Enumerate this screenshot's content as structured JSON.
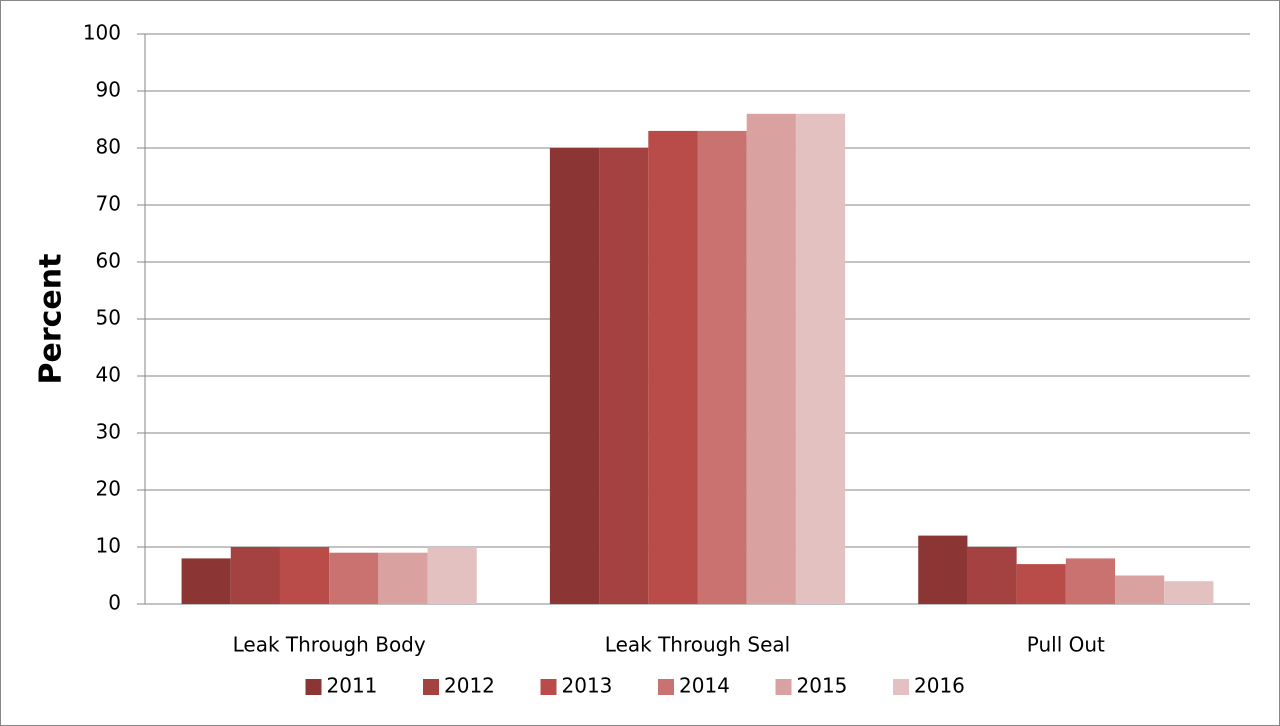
{
  "chart_data": {
    "type": "bar",
    "y_label": "Percent",
    "categories": [
      "Leak Through Body",
      "Leak Through Seal",
      "Pull Out"
    ],
    "series": [
      {
        "name": "2011",
        "color": "#8b3535",
        "values": [
          8,
          80,
          12
        ]
      },
      {
        "name": "2012",
        "color": "#a34240",
        "values": [
          10,
          80,
          10
        ]
      },
      {
        "name": "2013",
        "color": "#b94c48",
        "values": [
          10,
          83,
          7
        ]
      },
      {
        "name": "2014",
        "color": "#c97270",
        "values": [
          9,
          83,
          8
        ]
      },
      {
        "name": "2015",
        "color": "#d9a1a0",
        "values": [
          9,
          86,
          5
        ]
      },
      {
        "name": "2016",
        "color": "#e4c1c1",
        "values": [
          10,
          86,
          4
        ]
      }
    ],
    "ylim": [
      0,
      100
    ],
    "yticks": [
      0,
      10,
      20,
      30,
      40,
      50,
      60,
      70,
      80,
      90,
      100
    ],
    "grid": true,
    "legend": "bottom"
  }
}
